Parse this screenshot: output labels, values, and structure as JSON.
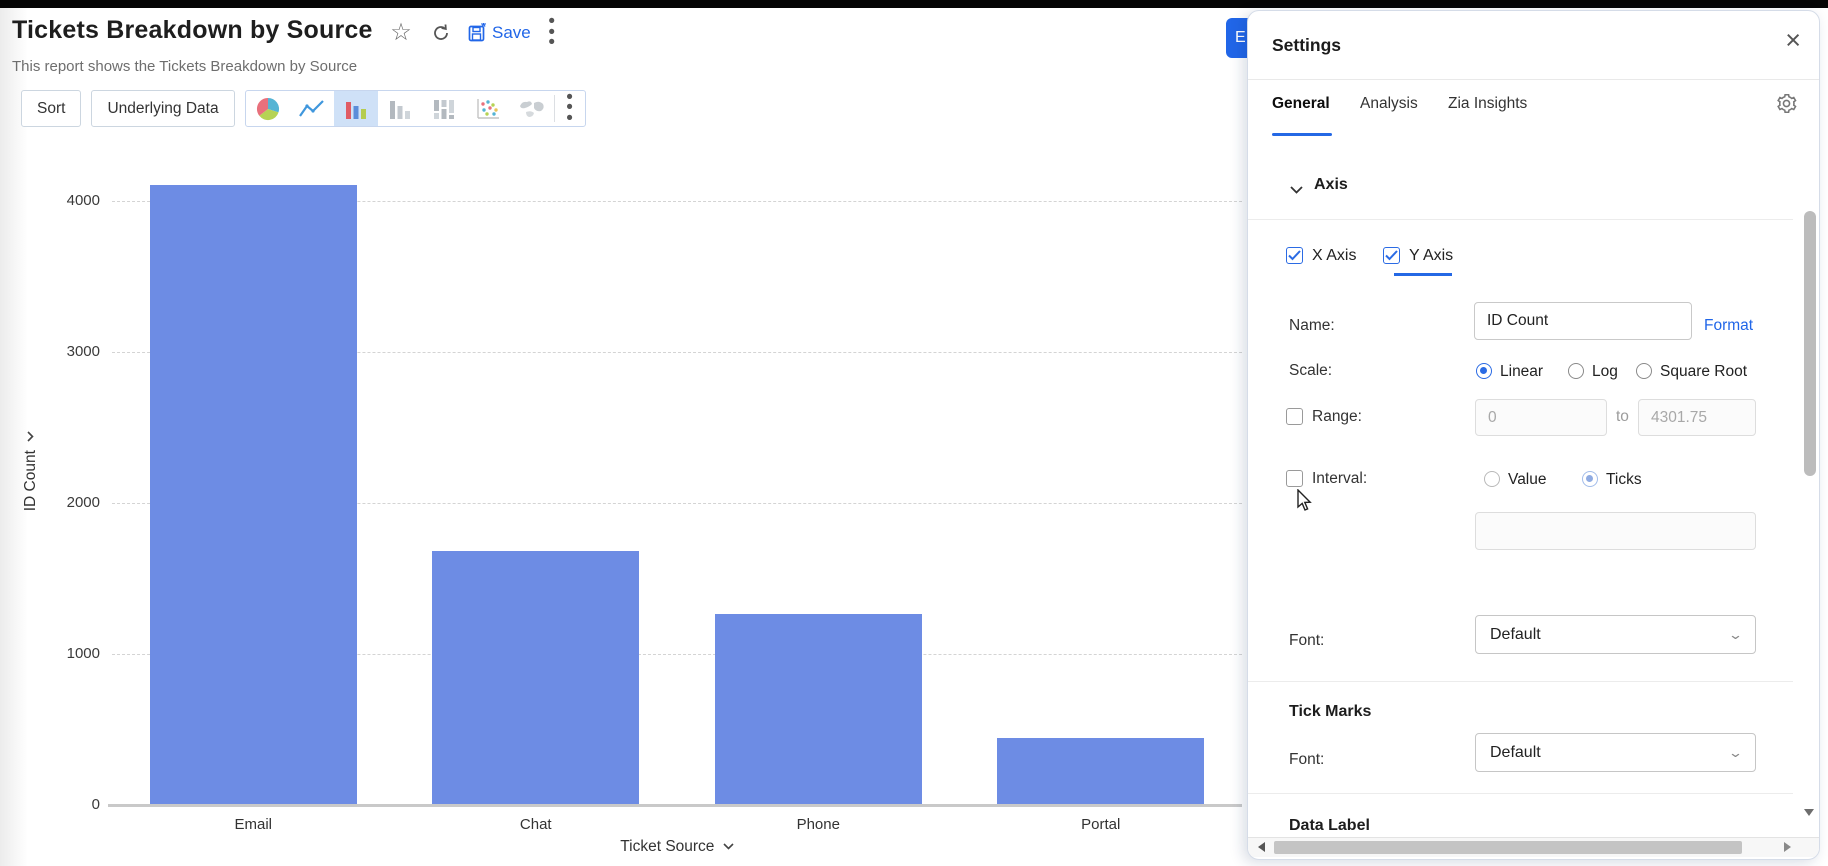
{
  "header": {
    "title": "Tickets Breakdown by Source",
    "subtitle": "This report shows the Tickets Breakdown by Source",
    "save_label": "Save",
    "icons": [
      "favorite-star-icon",
      "refresh-icon",
      "save-icon",
      "more-options-icon"
    ]
  },
  "toolbar": {
    "sort_label": "Sort",
    "underlying_data_label": "Underlying Data",
    "chart_type_icons": [
      "pie-chart-icon",
      "line-chart-icon",
      "bar-chart-icon",
      "stacked-bar-icon",
      "butterfly-bar-icon",
      "scatter-plot-icon",
      "map-chart-icon"
    ],
    "selected_chart_type": "bar-chart-icon"
  },
  "export_button": {
    "label": "E"
  },
  "chart_data": {
    "type": "bar",
    "title": "Tickets Breakdown by Source",
    "categories": [
      "Email",
      "Chat",
      "Phone",
      "Portal"
    ],
    "values": [
      4100,
      1680,
      1265,
      445
    ],
    "xlabel": "Ticket Source",
    "ylabel": "ID Count",
    "ylim": [
      0,
      4301.75
    ],
    "yticks": [
      0,
      1000,
      2000,
      3000,
      4000
    ],
    "grid": true,
    "legend_position": "none",
    "bar_color": "#6d8ce4"
  },
  "settings": {
    "title": "Settings",
    "tabs": [
      {
        "label": "General",
        "active": true
      },
      {
        "label": "Analysis",
        "active": false
      },
      {
        "label": "Zia Insights",
        "active": false
      }
    ],
    "axis": {
      "heading": "Axis",
      "x_axis": {
        "label": "X Axis",
        "checked": true
      },
      "y_axis": {
        "label": "Y Axis",
        "checked": true,
        "active": true
      },
      "name": {
        "label": "Name:",
        "value": "ID Count",
        "format_link": "Format"
      },
      "scale": {
        "label": "Scale:",
        "options": [
          "Linear",
          "Log",
          "Square Root"
        ],
        "selected": "Linear"
      },
      "range": {
        "label": "Range:",
        "checked": false,
        "from": "0",
        "to_word": "to",
        "to": "4301.75"
      },
      "interval": {
        "label": "Interval:",
        "checked": false,
        "options": [
          "Value",
          "Ticks"
        ],
        "selected": "Ticks",
        "value": ""
      },
      "font": {
        "label": "Font:",
        "value": "Default"
      }
    },
    "tick_marks": {
      "heading": "Tick Marks",
      "font": {
        "label": "Font:",
        "value": "Default"
      }
    },
    "data_label": {
      "heading": "Data Label"
    }
  },
  "colors": {
    "accent_blue": "#2166e8",
    "bar_blue": "#6d8ce4",
    "selected_icon_background": "#cfe1f7"
  }
}
